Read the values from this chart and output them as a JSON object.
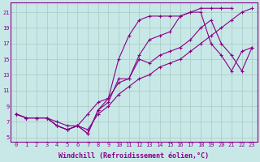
{
  "background_color": "#c8e8e8",
  "grid_color": "#a8c8c0",
  "line_color": "#880088",
  "marker": "+",
  "markersize": 3,
  "linewidth": 0.8,
  "xlabel": "Windchill (Refroidissement éolien,°C)",
  "xlabel_fontsize": 6.0,
  "tick_fontsize": 5.0,
  "xlim": [
    -0.5,
    23.5
  ],
  "ylim": [
    4.5,
    22.2
  ],
  "yticks": [
    5,
    7,
    9,
    11,
    13,
    15,
    17,
    19,
    21
  ],
  "xticks": [
    0,
    1,
    2,
    3,
    4,
    5,
    6,
    7,
    8,
    9,
    10,
    11,
    12,
    13,
    14,
    15,
    16,
    17,
    18,
    19,
    20,
    21,
    22,
    23
  ],
  "series": [
    [
      8.0,
      7.5,
      7.5,
      7.5,
      6.5,
      6.0,
      6.5,
      5.5,
      8.5,
      10.0,
      15.0,
      18.0,
      20.0,
      20.5,
      20.5,
      20.5,
      20.5,
      21.0,
      21.5,
      21.5,
      21.5,
      21.5,
      null,
      null
    ],
    [
      8.0,
      7.5,
      7.5,
      7.5,
      6.5,
      6.0,
      6.5,
      5.5,
      8.5,
      9.5,
      12.5,
      12.5,
      15.5,
      17.5,
      18.0,
      18.5,
      20.5,
      21.0,
      21.0,
      17.0,
      15.5,
      13.5,
      16.0,
      16.5
    ],
    [
      8.0,
      7.5,
      7.5,
      7.5,
      6.5,
      6.0,
      6.5,
      8.0,
      9.5,
      10.0,
      12.0,
      12.5,
      15.0,
      14.5,
      15.5,
      16.0,
      16.5,
      17.5,
      19.0,
      20.0,
      17.0,
      15.5,
      13.5,
      16.5
    ],
    [
      8.0,
      7.5,
      7.5,
      7.5,
      7.0,
      6.5,
      6.5,
      6.0,
      8.0,
      9.0,
      10.5,
      11.5,
      12.5,
      13.0,
      14.0,
      14.5,
      15.0,
      16.0,
      17.0,
      18.0,
      19.0,
      20.0,
      21.0,
      21.5
    ]
  ]
}
